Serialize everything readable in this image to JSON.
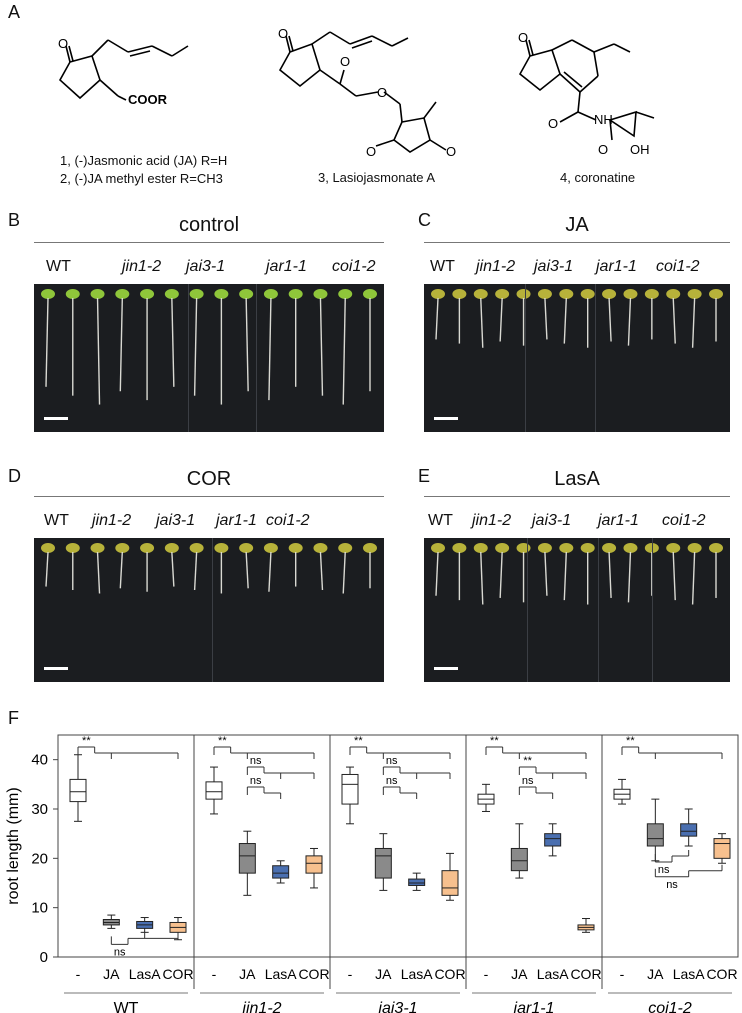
{
  "panelA": {
    "letter": "A",
    "compounds": [
      {
        "line1": "1, (-)Jasmonic acid (JA) R=H",
        "line2": "2, (-)JA methyl ester R=CH3",
        "struct_label": "COOR"
      },
      {
        "line1": "3, Lasiojasmonate A"
      },
      {
        "line1": "4, coronatine",
        "nh_label": "NH",
        "oh_label": "OH"
      }
    ],
    "atom_O": "O"
  },
  "photo_panels": [
    {
      "letter": "B",
      "title": "control",
      "labels": [
        "WT",
        "jin1-2",
        "jai3-1",
        "jar1-1",
        "coi1-2"
      ]
    },
    {
      "letter": "C",
      "title": "JA",
      "labels": [
        "WT",
        "jin1-2",
        "jai3-1",
        "jar1-1",
        "coi1-2"
      ]
    },
    {
      "letter": "D",
      "title": "COR",
      "labels": [
        "WT",
        "jin1-2",
        "jai3-1",
        "jar1-1",
        "coi1-2"
      ]
    },
    {
      "letter": "E",
      "title": "LasA",
      "labels": [
        "WT",
        "jin1-2",
        "jai3-1",
        "jar1-1",
        "coi1-2"
      ]
    }
  ],
  "chart_data": {
    "letter": "F",
    "type": "box",
    "ylabel": "root length (mm)",
    "ylim": [
      0,
      45
    ],
    "yticks": [
      0,
      10,
      20,
      30,
      40
    ],
    "treatments": [
      "-",
      "JA",
      "LasA",
      "COR"
    ],
    "colors": {
      "-": "#ffffff",
      "JA": "#8a8a8a",
      "LasA": "#4a6fb0",
      "COR": "#f7c08e"
    },
    "groups": [
      {
        "name": "WT",
        "boxes": [
          {
            "t": "-",
            "min": 27.5,
            "q1": 31.5,
            "med": 33.5,
            "q3": 36,
            "max": 41
          },
          {
            "t": "JA",
            "min": 5.8,
            "q1": 6.5,
            "med": 7,
            "q3": 7.6,
            "max": 8.5
          },
          {
            "t": "LasA",
            "min": 5,
            "q1": 5.8,
            "med": 6.5,
            "q3": 7.2,
            "max": 8
          },
          {
            "t": "COR",
            "min": 3.5,
            "q1": 5,
            "med": 6,
            "q3": 7,
            "max": 8
          }
        ],
        "sig": [
          {
            "label": "**",
            "from": 0,
            "to": [
              1,
              3
            ]
          },
          {
            "label": "ns",
            "from": 1,
            "to": [
              2,
              3
            ],
            "low": true
          }
        ]
      },
      {
        "name": "jin1-2",
        "boxes": [
          {
            "t": "-",
            "min": 29,
            "q1": 32,
            "med": 33.5,
            "q3": 35.5,
            "max": 38.5
          },
          {
            "t": "JA",
            "min": 12.5,
            "q1": 17,
            "med": 20.5,
            "q3": 23,
            "max": 25.5
          },
          {
            "t": "LasA",
            "min": 15,
            "q1": 16,
            "med": 17,
            "q3": 18.5,
            "max": 19.5
          },
          {
            "t": "COR",
            "min": 14,
            "q1": 17,
            "med": 19,
            "q3": 20.5,
            "max": 22
          }
        ],
        "sig": [
          {
            "label": "**",
            "from": 0,
            "to": [
              1,
              3
            ]
          },
          {
            "label": "ns",
            "from": 1,
            "to": [
              2,
              3
            ]
          },
          {
            "label": "ns",
            "from": 1,
            "to": [
              2
            ]
          }
        ]
      },
      {
        "name": "jai3-1",
        "boxes": [
          {
            "t": "-",
            "min": 27,
            "q1": 31,
            "med": 35,
            "q3": 37,
            "max": 38.5
          },
          {
            "t": "JA",
            "min": 13.5,
            "q1": 16,
            "med": 20.5,
            "q3": 22,
            "max": 25
          },
          {
            "t": "LasA",
            "min": 13.5,
            "q1": 14.5,
            "med": 15,
            "q3": 15.8,
            "max": 17
          },
          {
            "t": "COR",
            "min": 11.5,
            "q1": 12.5,
            "med": 14,
            "q3": 17.5,
            "max": 21
          }
        ],
        "sig": [
          {
            "label": "**",
            "from": 0,
            "to": [
              1,
              3
            ]
          },
          {
            "label": "ns",
            "from": 1,
            "to": [
              2,
              3
            ]
          },
          {
            "label": "ns",
            "from": 1,
            "to": [
              2
            ]
          }
        ]
      },
      {
        "name": "jar1-1",
        "boxes": [
          {
            "t": "-",
            "min": 29.5,
            "q1": 31,
            "med": 32,
            "q3": 33,
            "max": 35
          },
          {
            "t": "JA",
            "min": 16,
            "q1": 17.5,
            "med": 19.5,
            "q3": 22,
            "max": 27
          },
          {
            "t": "LasA",
            "min": 20.5,
            "q1": 22.5,
            "med": 24,
            "q3": 25,
            "max": 27
          },
          {
            "t": "COR",
            "min": 5,
            "q1": 5.5,
            "med": 6,
            "q3": 6.5,
            "max": 7.8
          }
        ],
        "sig": [
          {
            "label": "**",
            "from": 0,
            "to": [
              1,
              3
            ]
          },
          {
            "label": "**",
            "from": 1,
            "to": [
              2,
              3
            ]
          },
          {
            "label": "ns",
            "from": 1,
            "to": [
              2
            ]
          }
        ]
      },
      {
        "name": "coi1-2",
        "boxes": [
          {
            "t": "-",
            "min": 31,
            "q1": 32,
            "med": 33,
            "q3": 34,
            "max": 36
          },
          {
            "t": "JA",
            "min": 19.5,
            "q1": 22.5,
            "med": 24,
            "q3": 27,
            "max": 32
          },
          {
            "t": "LasA",
            "min": 22.5,
            "q1": 24.5,
            "med": 25.5,
            "q3": 27,
            "max": 30
          },
          {
            "t": "COR",
            "min": 19,
            "q1": 20,
            "med": 23,
            "q3": 24,
            "max": 25
          }
        ],
        "sig": [
          {
            "label": "**",
            "from": 0,
            "to": [
              1,
              3
            ]
          },
          {
            "label": "ns",
            "from": 1,
            "to": [
              2
            ],
            "low": true
          },
          {
            "label": "ns",
            "from": 1,
            "to": [
              3
            ],
            "low": true
          }
        ]
      }
    ]
  }
}
